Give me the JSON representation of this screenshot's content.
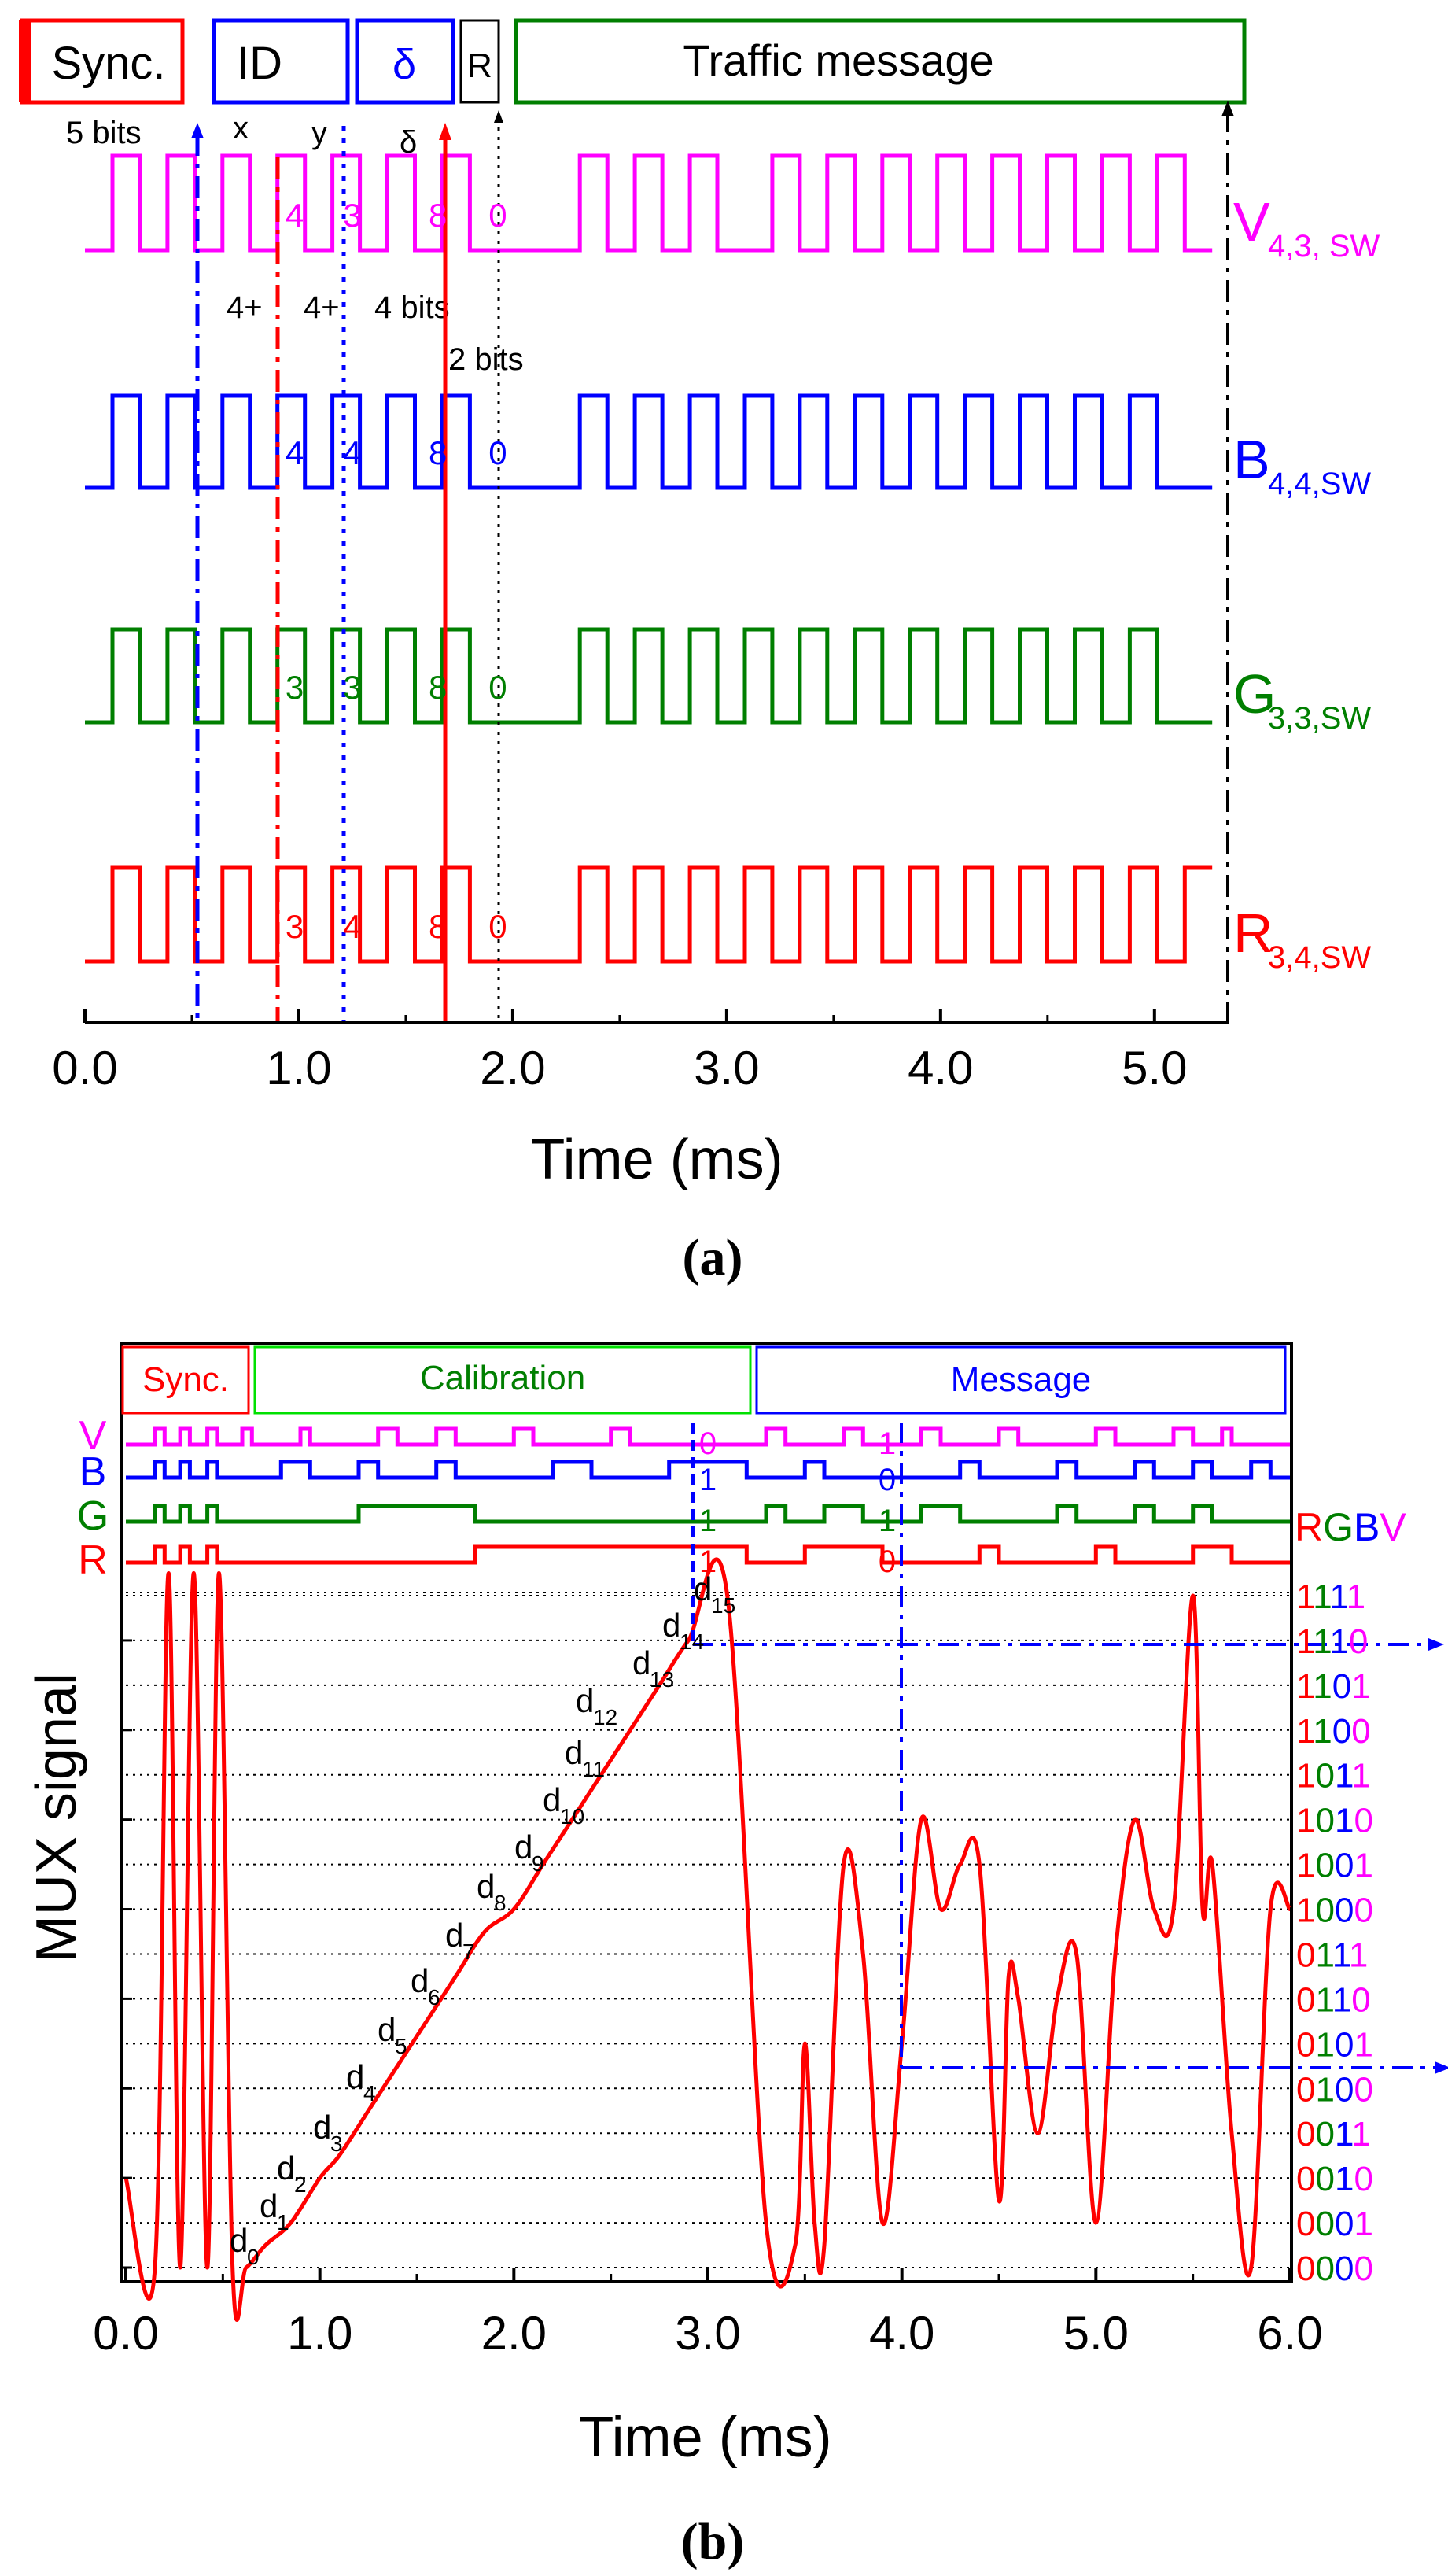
{
  "colors": {
    "V": "#ff00ff",
    "B": "#0000ff",
    "G": "#007f00",
    "R": "#ff0000",
    "black": "#000000",
    "calib": "#00e000"
  },
  "panel_a": {
    "label": "(a)",
    "header": {
      "sync": "Sync.",
      "id": "ID",
      "delta": "δ",
      "r": "R",
      "traffic": "Traffic message"
    },
    "annotations": {
      "bits5": "5 bits",
      "x": "x",
      "y": "y",
      "delta": "δ",
      "id_x_bits": "4+",
      "id_y_bits": "4+",
      "delta_bits": "4 bits",
      "r_bits": "2 bits"
    },
    "channels": [
      {
        "key": "V",
        "name": "V",
        "sub": "4,3, SW",
        "color": "#ff00ff",
        "digits": [
          "4",
          "3",
          "8",
          "0"
        ]
      },
      {
        "key": "B",
        "name": "B",
        "sub": "4,4,SW",
        "color": "#0000ff",
        "digits": [
          "4",
          "4",
          "8",
          "0"
        ]
      },
      {
        "key": "G",
        "name": "G",
        "sub": "3,3,SW",
        "color": "#007f00",
        "digits": [
          "3",
          "3",
          "8",
          "0"
        ]
      },
      {
        "key": "R",
        "name": "R",
        "sub": "3,4,SW",
        "color": "#ff0000",
        "digits": [
          "3",
          "4",
          "8",
          "0"
        ]
      }
    ]
  },
  "panel_b": {
    "label": "(b)",
    "header": {
      "sync": "Sync.",
      "calibration": "Calibration",
      "message": "Message"
    },
    "rgbv_header": [
      {
        "t": "R",
        "c": "#ff0000"
      },
      {
        "t": "G",
        "c": "#007f00"
      },
      {
        "t": "B",
        "c": "#0000ff"
      },
      {
        "t": "V",
        "c": "#ff00ff"
      }
    ],
    "channel_labels": [
      {
        "t": "V",
        "c": "#ff00ff"
      },
      {
        "t": "B",
        "c": "#0000ff"
      },
      {
        "t": "G",
        "c": "#007f00"
      },
      {
        "t": "R",
        "c": "#ff0000"
      }
    ],
    "bit_marks_left": [
      {
        "t": "0",
        "c": "#ff00ff"
      },
      {
        "t": "1",
        "c": "#0000ff"
      },
      {
        "t": "1",
        "c": "#007f00"
      },
      {
        "t": "1",
        "c": "#ff0000"
      }
    ],
    "bit_marks_right": [
      {
        "t": "1",
        "c": "#ff00ff"
      },
      {
        "t": "0",
        "c": "#0000ff"
      },
      {
        "t": "1",
        "c": "#007f00"
      },
      {
        "t": "0",
        "c": "#ff0000"
      }
    ],
    "codes": [
      "0000",
      "0001",
      "0010",
      "0011",
      "0100",
      "0101",
      "0110",
      "0111",
      "1000",
      "1001",
      "1010",
      "1011",
      "1100",
      "1101",
      "1110",
      "1111"
    ],
    "d_labels": [
      "d",
      "d",
      "d",
      "d",
      "d",
      "d",
      "d",
      "d",
      "d",
      "d",
      "d",
      "d",
      "d",
      "d",
      "d",
      "d"
    ],
    "d_subs": [
      "0",
      "1",
      "2",
      "3",
      "4",
      "5",
      "6",
      "7",
      "8",
      "9",
      "10",
      "11",
      "12",
      "13",
      "14",
      "15"
    ]
  },
  "chart_data": [
    {
      "type": "line",
      "xlabel": "Time (ms)",
      "xlim": [
        0.0,
        5.35
      ],
      "xticks": [
        "0.0",
        "1.0",
        "2.0",
        "3.0",
        "4.0",
        "5.0"
      ],
      "series": [
        {
          "name": "V4,3, SW",
          "values": [
            0,
            1,
            0,
            1,
            0,
            1,
            0,
            1,
            0,
            1,
            0,
            1,
            0,
            1,
            0,
            0,
            0,
            0,
            1,
            0,
            1,
            0,
            1,
            0,
            0,
            1,
            0,
            1,
            0,
            1,
            0,
            1,
            0,
            1,
            0,
            1,
            0,
            1,
            0,
            1,
            0
          ]
        },
        {
          "name": "B4,4,SW",
          "values": [
            0,
            1,
            0,
            1,
            0,
            1,
            0,
            1,
            0,
            1,
            0,
            1,
            0,
            1,
            0,
            0,
            0,
            0,
            1,
            0,
            1,
            0,
            1,
            0,
            1,
            0,
            1,
            0,
            1,
            0,
            1,
            0,
            1,
            0,
            1,
            0,
            1,
            0,
            1,
            0,
            0
          ]
        },
        {
          "name": "G3,3,SW",
          "values": [
            0,
            1,
            0,
            1,
            0,
            1,
            0,
            1,
            0,
            1,
            0,
            1,
            0,
            1,
            0,
            0,
            0,
            0,
            1,
            0,
            1,
            0,
            1,
            0,
            1,
            0,
            1,
            0,
            1,
            0,
            1,
            0,
            1,
            0,
            1,
            0,
            1,
            0,
            1,
            0,
            0
          ]
        },
        {
          "name": "R3,4,SW",
          "values": [
            0,
            1,
            0,
            1,
            0,
            1,
            0,
            1,
            0,
            1,
            0,
            1,
            0,
            1,
            0,
            0,
            0,
            0,
            1,
            0,
            1,
            0,
            1,
            0,
            1,
            0,
            1,
            0,
            1,
            0,
            1,
            0,
            1,
            0,
            1,
            0,
            1,
            0,
            1,
            0,
            1
          ]
        }
      ]
    },
    {
      "type": "line",
      "xlabel": "Time (ms)",
      "ylabel": "MUX signal",
      "xlim": [
        0.0,
        6.0
      ],
      "xticks": [
        "0.0",
        "1.0",
        "2.0",
        "3.0",
        "4.0",
        "5.0",
        "6.0"
      ],
      "levels": 16,
      "series": [
        {
          "name": "MUX",
          "x": [
            0.0,
            0.15,
            0.22,
            0.28,
            0.35,
            0.42,
            0.48,
            0.55,
            0.62,
            0.72,
            0.85,
            1.0,
            1.1,
            1.25,
            1.4,
            1.55,
            1.7,
            1.85,
            2.0,
            2.15,
            2.3,
            2.45,
            2.6,
            2.75,
            2.9,
            3.1,
            3.3,
            3.45,
            3.5,
            3.55,
            3.6,
            3.7,
            3.8,
            3.9,
            4.0,
            4.1,
            4.2,
            4.3,
            4.4,
            4.5,
            4.55,
            4.6,
            4.7,
            4.8,
            4.9,
            5.0,
            5.1,
            5.2,
            5.3,
            5.4,
            5.5,
            5.55,
            5.6,
            5.7,
            5.8,
            5.9,
            6.0
          ],
          "y": [
            2,
            0,
            15.5,
            0,
            15.5,
            0,
            15.5,
            0,
            0,
            0.5,
            1,
            2,
            2.5,
            3.5,
            4.5,
            5.5,
            6.5,
            7.5,
            8,
            9,
            10,
            11,
            12,
            13,
            14,
            15,
            1,
            0.5,
            5,
            1,
            0.5,
            9,
            7,
            1,
            5,
            10,
            8,
            9,
            9,
            1.5,
            6.5,
            6,
            3,
            6,
            7,
            1,
            7,
            10,
            8,
            8,
            15,
            8,
            9,
            3,
            0,
            8,
            8
          ]
        }
      ]
    }
  ]
}
